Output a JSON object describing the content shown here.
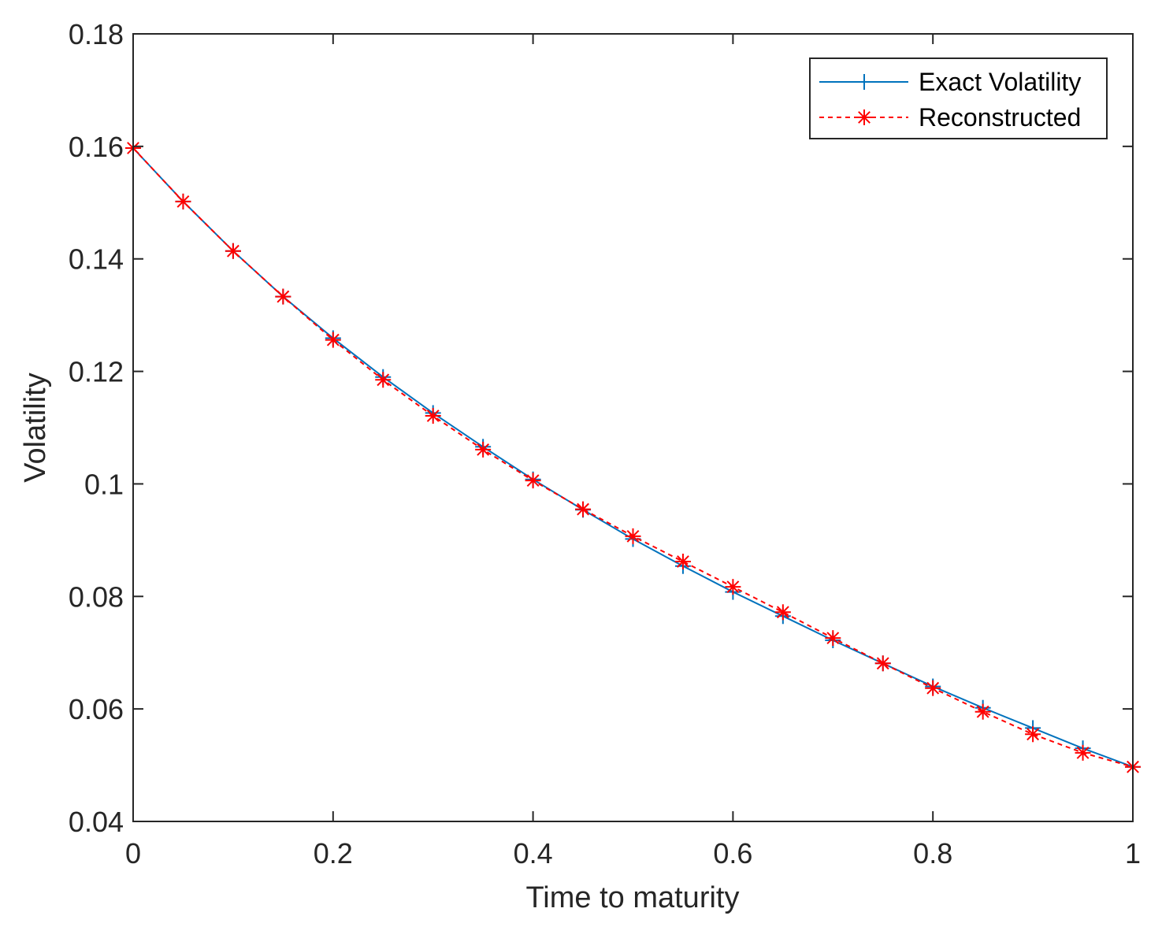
{
  "chart_data": {
    "type": "line",
    "title": "",
    "xlabel": "Time to maturity",
    "ylabel": "Volatility",
    "xlim": [
      0,
      1
    ],
    "ylim": [
      0.04,
      0.18
    ],
    "xticks": [
      0,
      0.2,
      0.4,
      0.6,
      0.8,
      1
    ],
    "xtick_labels": [
      "0",
      "0.2",
      "0.4",
      "0.6",
      "0.8",
      "1"
    ],
    "yticks": [
      0.04,
      0.06,
      0.08,
      0.1,
      0.12,
      0.14,
      0.16,
      0.18
    ],
    "ytick_labels": [
      "0.04",
      "0.06",
      "0.08",
      "0.1",
      "0.12",
      "0.14",
      "0.16",
      "0.18"
    ],
    "grid": false,
    "legend_position": "top-right",
    "x": [
      0,
      0.05,
      0.1,
      0.15,
      0.2,
      0.25,
      0.3,
      0.35,
      0.4,
      0.45,
      0.5,
      0.55,
      0.6,
      0.65,
      0.7,
      0.75,
      0.8,
      0.85,
      0.9,
      0.95,
      1.0
    ],
    "series": [
      {
        "name": "Exact Volatility",
        "color": "#0072BD",
        "line_style": "solid",
        "marker": "plus",
        "values": [
          0.1597,
          0.1502,
          0.1414,
          0.1333,
          0.1259,
          0.119,
          0.1126,
          0.1066,
          0.1008,
          0.0954,
          0.0902,
          0.0854,
          0.0808,
          0.0765,
          0.0722,
          0.0681,
          0.064,
          0.0602,
          0.0566,
          0.053,
          0.0497
        ]
      },
      {
        "name": "Reconstructed",
        "color": "#FF0000",
        "line_style": "dashed",
        "marker": "asterisk",
        "values": [
          0.1597,
          0.1502,
          0.1414,
          0.1333,
          0.1256,
          0.1185,
          0.1121,
          0.1061,
          0.1006,
          0.0955,
          0.0907,
          0.0862,
          0.0817,
          0.0772,
          0.0726,
          0.0681,
          0.0637,
          0.0595,
          0.0555,
          0.0522,
          0.0497
        ]
      }
    ]
  }
}
